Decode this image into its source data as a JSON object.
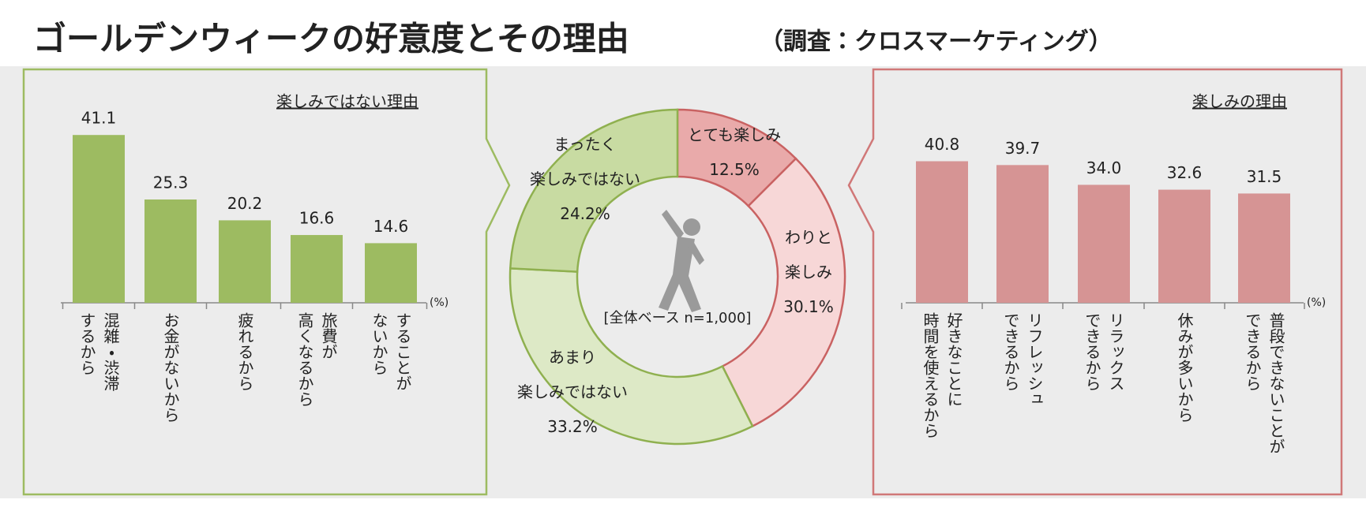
{
  "title": "ゴールデンウィークの好意度とその理由",
  "subtitle": "（調査：クロスマーケティング）",
  "chart_data": [
    {
      "type": "bar",
      "title": "楽しみではない理由",
      "unit": "(%)",
      "color": "#9dbb61",
      "categories": [
        "混雑・渋滞\nするから",
        "お金がないから",
        "疲れるから",
        "旅費が\n高くなるから",
        "することが\nないから"
      ],
      "values": [
        41.1,
        25.3,
        20.2,
        16.6,
        14.6
      ],
      "ylim": [
        0,
        45
      ]
    },
    {
      "type": "donut",
      "note": "[全体ベース n=1,000]",
      "categories": [
        "とても楽しみ",
        "わりと\n楽しみ",
        "あまり\n楽しみではない",
        "まったく\n楽しみではない"
      ],
      "values": [
        12.5,
        30.1,
        33.2,
        24.2
      ],
      "value_labels": [
        "12.5%",
        "30.1%",
        "33.2%",
        "24.2%"
      ],
      "colors": [
        "#e9aaaa",
        "#f7d7d7",
        "#dde9c6",
        "#c8dba2"
      ]
    },
    {
      "type": "bar",
      "title": "楽しみの理由",
      "unit": "(%)",
      "color": "#d69494",
      "categories": [
        "好きなことに\n時間を使えるから",
        "リフレッシュ\nできるから",
        "リラックス\nできるから",
        "休みが多いから",
        "普段できないことが\nできるから"
      ],
      "values": [
        40.8,
        39.7,
        34.0,
        32.6,
        31.5
      ],
      "value_labels": [
        "40.8",
        "39.7",
        "34.0",
        "32.6",
        "31.5"
      ],
      "ylim": [
        0,
        50
      ]
    }
  ]
}
